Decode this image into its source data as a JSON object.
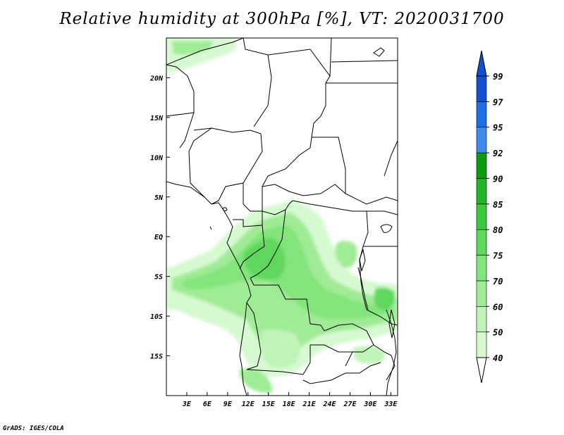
{
  "title": "Relative humidity at 300hPa [%], VT: 2020031700",
  "credit": "GrADS: IGES/COLA",
  "map": {
    "projection": "lat-lon",
    "lon_range": [
      0,
      34
    ],
    "lat_range": [
      -20,
      25
    ],
    "lon_ticks": [
      {
        "value": 3,
        "label": "3E"
      },
      {
        "value": 6,
        "label": "6E"
      },
      {
        "value": 9,
        "label": "9E"
      },
      {
        "value": 12,
        "label": "12E"
      },
      {
        "value": 15,
        "label": "15E"
      },
      {
        "value": 18,
        "label": "18E"
      },
      {
        "value": 21,
        "label": "21E"
      },
      {
        "value": 24,
        "label": "24E"
      },
      {
        "value": 27,
        "label": "27E"
      },
      {
        "value": 30,
        "label": "30E"
      },
      {
        "value": 33,
        "label": "33E"
      }
    ],
    "lat_ticks": [
      {
        "value": 20,
        "label": "20N"
      },
      {
        "value": 15,
        "label": "15N"
      },
      {
        "value": 10,
        "label": "10N"
      },
      {
        "value": 5,
        "label": "5N"
      },
      {
        "value": 0,
        "label": "EQ"
      },
      {
        "value": -5,
        "label": "5S"
      },
      {
        "value": -10,
        "label": "10S"
      },
      {
        "value": -15,
        "label": "15S"
      }
    ]
  },
  "colorbar": {
    "levels": [
      "40",
      "50",
      "60",
      "70",
      "75",
      "80",
      "85",
      "90",
      "92",
      "95",
      "97",
      "99"
    ],
    "colors": [
      "#ebfceb",
      "#d7f9d2",
      "#c0f4b8",
      "#a0eb96",
      "#82e47a",
      "#5fd75c",
      "#3cc83c",
      "#22b422",
      "#0f9b0f",
      "#3c8cf0",
      "#1e6ee6",
      "#1450d2"
    ],
    "below_color": "#ffffff",
    "above_color": "#1450d2"
  },
  "palette": {
    "land_border": "#000000",
    "background": "#ffffff"
  }
}
